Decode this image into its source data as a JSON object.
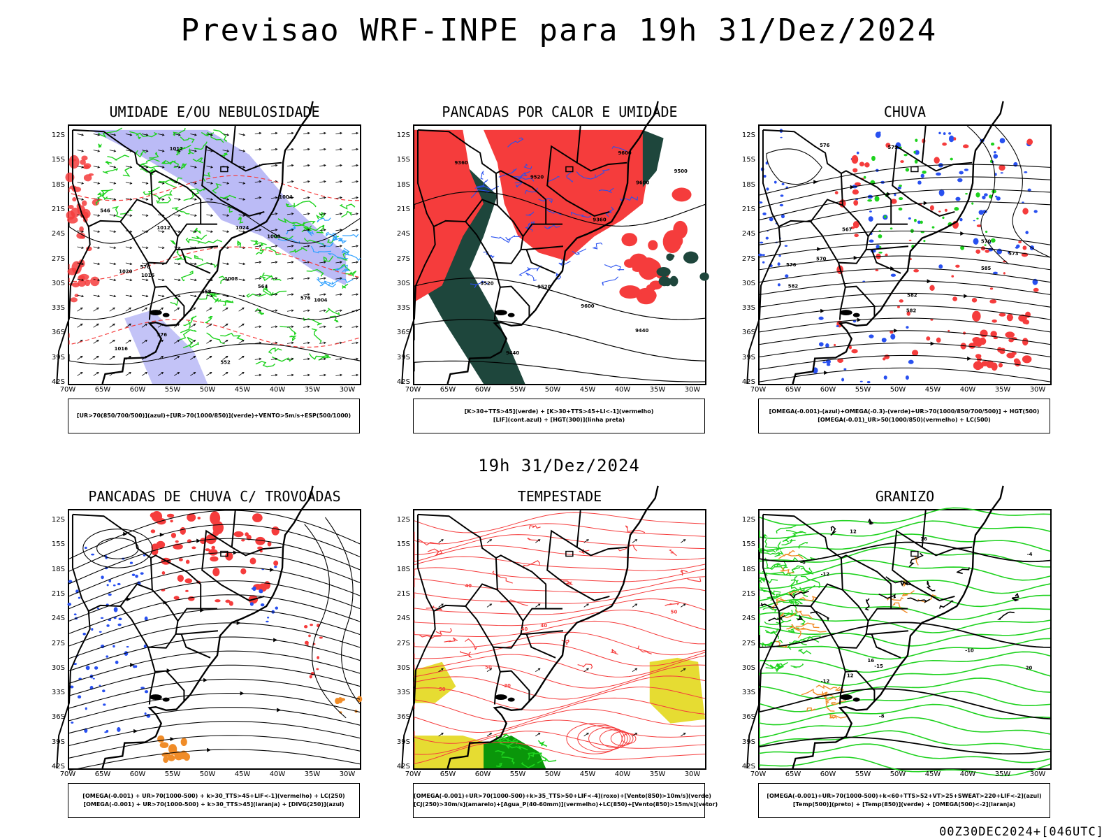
{
  "title": "Previsao WRF-INPE  para 19h 31/Dez/2024",
  "mid_title": "19h 31/Dez/2024",
  "footer": "00Z30DEC2024+[046UTC]",
  "axes": {
    "lat_ticks": [
      "12S",
      "15S",
      "18S",
      "21S",
      "24S",
      "27S",
      "30S",
      "33S",
      "36S",
      "39S",
      "42S"
    ],
    "lon_ticks": [
      "70W",
      "65W",
      "60W",
      "55W",
      "50W",
      "45W",
      "40W",
      "35W",
      "30W"
    ]
  },
  "colors": {
    "red": "#f53c3c",
    "green": "#1ed21e",
    "blue": "#2850f0",
    "lavender": "#b4b4f5",
    "darkteal": "#1e463c",
    "yellow": "#e6dc32",
    "orange": "#f08c28",
    "darkgreen": "#0a960a"
  },
  "panels": [
    {
      "id": "umidade",
      "title": "UMIDADE E/OU NEBULOSIDADE",
      "legend": [
        "[UR>70(850/700/500)](azul)+[UR>70(1000/850)](verde)+VENTO>5m/s+ESP(500/1000)"
      ],
      "annotations": [
        "1004",
        "1008",
        "1012",
        "1016",
        "1020",
        "1024",
        "1004",
        "1008",
        "1012",
        "1016",
        "576",
        "576",
        "570",
        "564",
        "558",
        "552",
        "546"
      ]
    },
    {
      "id": "pancadas-calor",
      "title": "PANCADAS POR CALOR E UMIDADE",
      "legend": [
        "[K>30+TTS>45](verde) + [K>30+TTS>45+LI<-1](vermelho)",
        "[LIF](cont.azul) + [HGT(300)](linha preta)"
      ],
      "annotations": [
        "9600",
        "9600",
        "9600",
        "9520",
        "9520",
        "9520",
        "9440",
        "9440",
        "9360",
        "9360",
        "9500"
      ]
    },
    {
      "id": "chuva",
      "title": "CHUVA",
      "legend": [
        "[OMEGA(-0.001)-(azul)+OMEGA(-0.3)-(verde)+UR>70(1000/850/700/500)] + HGT(500)",
        "[OMEGA(-0.01)_UR>50(1000/850)(vermelho) + LC(500)"
      ],
      "annotations": [
        "582",
        "582",
        "582",
        "579",
        "576",
        "576",
        "573",
        "570",
        "570",
        "567",
        "585"
      ]
    },
    {
      "id": "pancadas-trovoadas",
      "title": "PANCADAS DE CHUVA C/ TROVOADAS",
      "legend": [
        "[OMEGA(-0.001) + UR>70(1000-500) + k>30_TTS>45+LIF<-1](vermelho) + LC(250)",
        "[OMEGA(-0.001) + UR>70(1000-500) + k>30_TTS>45](laranja) + [DIVG(250)](azul)"
      ],
      "annotations": []
    },
    {
      "id": "tempestade",
      "title": "TEMPESTADE",
      "legend": [
        "[OMEGA(-0.001)+UR>70(1000-500)+k>35_TTS>50+LIF<-4](roxo)+[Vento(850)>10m/s](verde)",
        "[CJ(250)>30m/s](amarelo)+[Agua_P(40-60mm)](vermelho)+LC(850)+[Vento(850)>15m/s](vetor)"
      ],
      "annotations": [
        "40",
        "50",
        "50",
        "40",
        "30",
        "40",
        "50"
      ]
    },
    {
      "id": "granizo",
      "title": "GRANIZO",
      "legend": [
        "[OMEGA(-0.001)+UR>70(1000-500)+k<60+TTS>52+VT>25+SWEAT>220+LIF<-2](azul)",
        "[Temp(500)](preto) + [Temp(850)](verde) + [OMEGA(500)<-2](laranja)"
      ],
      "annotations": [
        "-6",
        "-8",
        "-4",
        "-12",
        "-10",
        "12",
        "16",
        "12",
        "16",
        "20",
        "-15",
        "-12"
      ]
    }
  ]
}
